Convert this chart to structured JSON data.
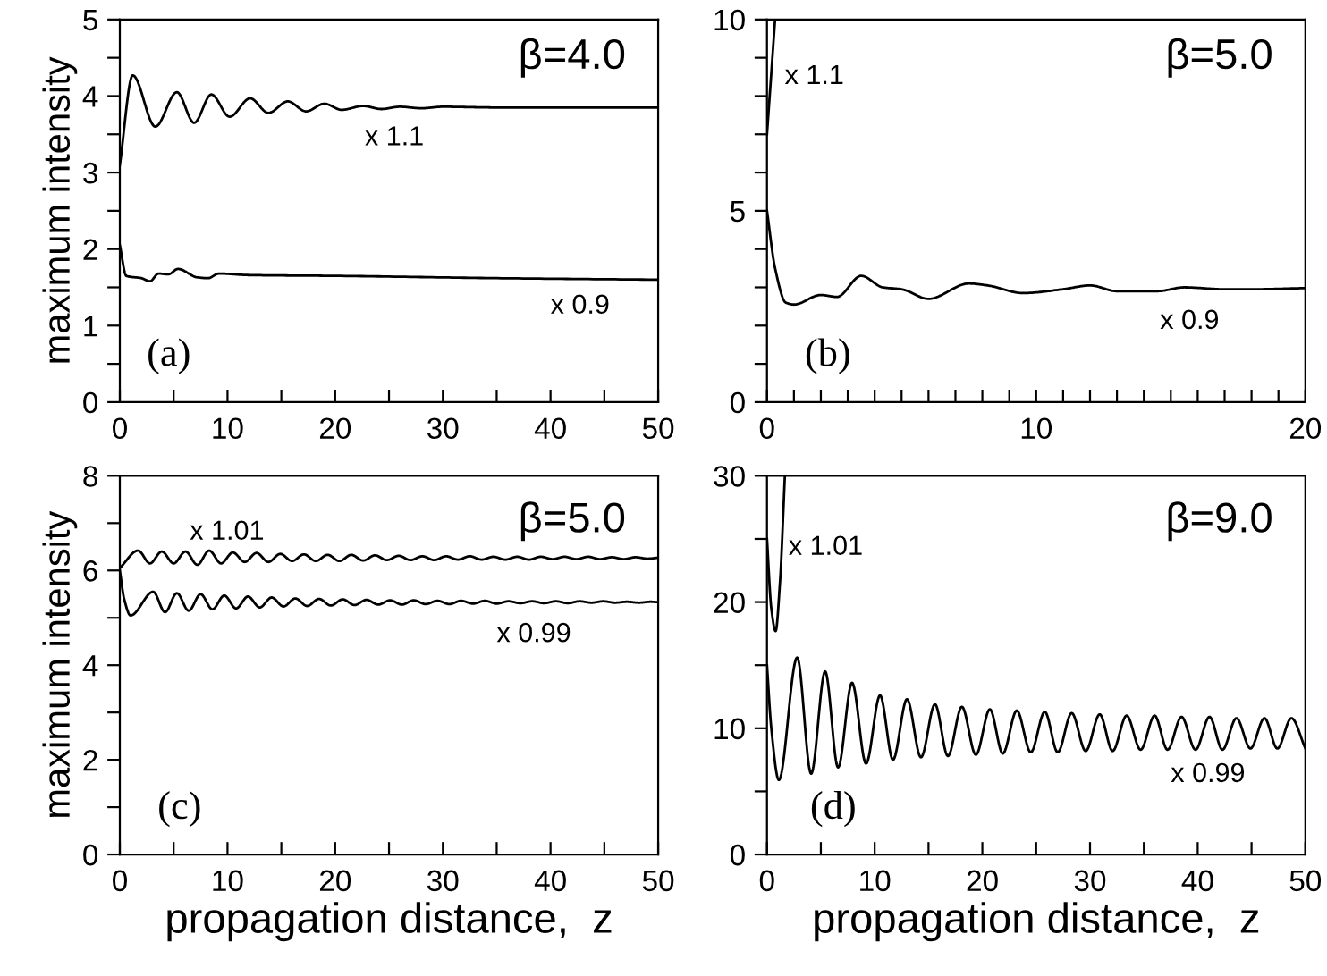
{
  "chart_data": [
    {
      "type": "line",
      "ylabel": "maximum intensity",
      "annotations": [
        "β=4.0",
        "(a)"
      ],
      "xlim": [
        0,
        50
      ],
      "ylim": [
        0,
        5
      ],
      "xticks": [
        0,
        {
          "value": 5,
          "label": null
        },
        10,
        {
          "value": 15,
          "label": null
        },
        20,
        {
          "value": 25,
          "label": null
        },
        30,
        {
          "value": 35,
          "label": null
        },
        40,
        {
          "value": 45,
          "label": null
        },
        50
      ],
      "yticks": [
        0,
        {
          "value": 0.5,
          "label": null
        },
        1,
        {
          "value": 1.5,
          "label": null
        },
        2,
        {
          "value": 2.5,
          "label": null
        },
        3,
        {
          "value": 3.5,
          "label": null
        },
        4,
        {
          "value": 4.5,
          "label": null
        },
        5
      ],
      "grid": false,
      "legend": false,
      "marker": "none",
      "line_style": "solid",
      "series": [
        {
          "name": "x 1.1",
          "color": "#000000",
          "x": [
            0,
            1.2,
            3.3,
            5.3,
            6.9,
            8.5,
            10.2,
            12.1,
            13.8,
            15.6,
            17.3,
            19,
            20.6,
            22.6,
            24.3,
            26,
            28,
            30,
            35,
            50
          ],
          "values": [
            3.1,
            4.27,
            3.6,
            4.05,
            3.65,
            4.02,
            3.73,
            3.97,
            3.78,
            3.93,
            3.8,
            3.9,
            3.82,
            3.87,
            3.83,
            3.86,
            3.84,
            3.86,
            3.85,
            3.85
          ]
        },
        {
          "name": "x 0.9",
          "color": "#000000",
          "x": [
            0,
            0.6,
            2,
            2.8,
            3.6,
            4.5,
            5.4,
            7.2,
            8.2,
            9.2,
            12,
            20,
            35,
            50
          ],
          "values": [
            2.05,
            1.65,
            1.62,
            1.58,
            1.68,
            1.67,
            1.74,
            1.63,
            1.62,
            1.68,
            1.66,
            1.65,
            1.62,
            1.6
          ]
        }
      ]
    },
    {
      "type": "line",
      "annotations": [
        "β=5.0",
        "(b)"
      ],
      "xlim": [
        0,
        20
      ],
      "ylim": [
        0,
        10
      ],
      "xticks": [
        0,
        {
          "value": 1,
          "label": null
        },
        {
          "value": 2,
          "label": null
        },
        {
          "value": 3,
          "label": null
        },
        {
          "value": 4,
          "label": null
        },
        {
          "value": 5,
          "label": null
        },
        {
          "value": 6,
          "label": null
        },
        {
          "value": 7,
          "label": null
        },
        {
          "value": 8,
          "label": null
        },
        {
          "value": 9,
          "label": null
        },
        10,
        {
          "value": 11,
          "label": null
        },
        {
          "value": 12,
          "label": null
        },
        {
          "value": 13,
          "label": null
        },
        {
          "value": 14,
          "label": null
        },
        {
          "value": 15,
          "label": null
        },
        {
          "value": 16,
          "label": null
        },
        {
          "value": 17,
          "label": null
        },
        {
          "value": 18,
          "label": null
        },
        {
          "value": 19,
          "label": null
        },
        20
      ],
      "yticks": [
        0,
        {
          "value": 1,
          "label": null
        },
        {
          "value": 2,
          "label": null
        },
        {
          "value": 3,
          "label": null
        },
        {
          "value": 4,
          "label": null
        },
        5,
        {
          "value": 6,
          "label": null
        },
        {
          "value": 7,
          "label": null
        },
        {
          "value": 8,
          "label": null
        },
        {
          "value": 9,
          "label": null
        },
        10
      ],
      "grid": false,
      "legend": false,
      "marker": "none",
      "line_style": "solid",
      "series": [
        {
          "name": "x 1.1",
          "color": "#000000",
          "x": [
            0,
            0.15,
            0.3
          ],
          "values": [
            7,
            8.5,
            10
          ]
        },
        {
          "name": "x 0.9",
          "color": "#000000",
          "x": [
            0,
            0.3,
            0.7,
            1,
            2,
            2.6,
            3.5,
            4.3,
            5,
            6,
            7.5,
            8.2,
            9.5,
            11,
            12,
            13,
            14.5,
            15.5,
            17,
            18,
            20
          ],
          "values": [
            5,
            3.5,
            2.6,
            2.55,
            2.8,
            2.75,
            3.3,
            3.0,
            2.95,
            2.7,
            3.1,
            3.05,
            2.85,
            2.95,
            3.05,
            2.9,
            2.9,
            3.0,
            2.95,
            2.95,
            2.98
          ]
        }
      ]
    },
    {
      "type": "line",
      "xlabel": "propagation distance,  z",
      "ylabel": "maximum intensity",
      "annotations": [
        "β=5.0",
        "(c)"
      ],
      "xlim": [
        0,
        50
      ],
      "ylim": [
        0,
        8
      ],
      "xticks": [
        0,
        {
          "value": 5,
          "label": null
        },
        10,
        {
          "value": 15,
          "label": null
        },
        20,
        {
          "value": 25,
          "label": null
        },
        30,
        {
          "value": 35,
          "label": null
        },
        40,
        {
          "value": 45,
          "label": null
        },
        50
      ],
      "yticks": [
        0,
        {
          "value": 1,
          "label": null
        },
        2,
        {
          "value": 3,
          "label": null
        },
        4,
        {
          "value": 5,
          "label": null
        },
        6,
        {
          "value": 7,
          "label": null
        },
        8
      ],
      "grid": false,
      "legend": false,
      "marker": "none",
      "line_style": "solid",
      "series": [
        {
          "name": "x 1.01",
          "color": "#000000",
          "x": [
            0,
            1.7,
            2.8,
            3.9,
            5.0,
            6.1,
            7.2,
            8.3,
            9.4,
            10.5,
            11.6,
            12.7,
            13.8,
            14.9,
            16,
            17.1,
            18.2,
            19.3,
            20.4,
            21.5,
            22.6,
            23.7,
            24.8,
            25.9,
            27,
            28.1,
            29.2,
            30.3,
            31.4,
            32.5,
            33.6,
            34.7,
            35.8,
            36.9,
            38,
            39.1,
            40.2,
            41.3,
            42.4,
            43.5,
            44.6,
            45.7,
            46.8,
            47.9,
            49,
            50
          ],
          "values": [
            6.05,
            6.42,
            6.15,
            6.4,
            6.15,
            6.4,
            6.12,
            6.42,
            6.15,
            6.38,
            6.18,
            6.37,
            6.18,
            6.35,
            6.2,
            6.34,
            6.2,
            6.33,
            6.2,
            6.33,
            6.21,
            6.32,
            6.22,
            6.31,
            6.22,
            6.3,
            6.22,
            6.3,
            6.23,
            6.3,
            6.23,
            6.29,
            6.23,
            6.29,
            6.23,
            6.29,
            6.24,
            6.29,
            6.24,
            6.29,
            6.24,
            6.28,
            6.24,
            6.28,
            6.25,
            6.27
          ]
        },
        {
          "name": "x 0.99",
          "color": "#000000",
          "x": [
            0,
            0.4,
            1.0,
            3.1,
            4.2,
            5.3,
            6.4,
            7.5,
            8.6,
            9.7,
            10.8,
            11.9,
            13,
            14.1,
            15.2,
            16.3,
            17.4,
            18.5,
            19.6,
            20.7,
            21.8,
            22.9,
            24,
            25.1,
            26.2,
            27.3,
            28.4,
            29.5,
            30.6,
            31.7,
            32.8,
            33.9,
            35,
            36.1,
            37.2,
            38.3,
            39.4,
            40.5,
            41.6,
            42.7,
            43.8,
            44.9,
            46,
            47.1,
            48.2,
            49.3,
            50
          ],
          "values": [
            6.0,
            5.4,
            5.05,
            5.55,
            5.12,
            5.52,
            5.15,
            5.5,
            5.18,
            5.47,
            5.2,
            5.45,
            5.22,
            5.43,
            5.24,
            5.41,
            5.25,
            5.4,
            5.26,
            5.39,
            5.27,
            5.38,
            5.28,
            5.37,
            5.28,
            5.37,
            5.29,
            5.36,
            5.29,
            5.36,
            5.3,
            5.36,
            5.3,
            5.35,
            5.31,
            5.35,
            5.31,
            5.35,
            5.31,
            5.35,
            5.32,
            5.35,
            5.32,
            5.34,
            5.32,
            5.34,
            5.33
          ]
        }
      ]
    },
    {
      "type": "line",
      "xlabel": "propagation distance,  z",
      "annotations": [
        "β=9.0",
        "(d)"
      ],
      "xlim": [
        0,
        50
      ],
      "ylim": [
        0,
        30
      ],
      "xticks": [
        0,
        {
          "value": 5,
          "label": null
        },
        10,
        {
          "value": 15,
          "label": null
        },
        20,
        {
          "value": 25,
          "label": null
        },
        30,
        {
          "value": 35,
          "label": null
        },
        40,
        {
          "value": 45,
          "label": null
        },
        50
      ],
      "yticks": [
        0,
        {
          "value": 5,
          "label": null
        },
        10,
        {
          "value": 15,
          "label": null
        },
        20,
        {
          "value": 25,
          "label": null
        },
        30
      ],
      "grid": false,
      "legend": false,
      "marker": "none",
      "line_style": "solid",
      "series": [
        {
          "name": "x 1.01",
          "color": "#000000",
          "x": [
            0,
            0.4,
            0.8,
            1.2,
            1.66
          ],
          "values": [
            25,
            19.5,
            17.7,
            21.5,
            30
          ]
        },
        {
          "name": "x 0.99",
          "color": "#000000",
          "x": [
            0,
            0.4,
            1.1,
            2.8,
            4.1,
            5.4,
            6.6,
            7.9,
            9.2,
            10.5,
            11.7,
            13.0,
            14.3,
            15.6,
            16.8,
            18.1,
            19.4,
            20.7,
            21.9,
            23.2,
            24.5,
            25.8,
            27.0,
            28.3,
            29.6,
            30.9,
            32.1,
            33.4,
            34.7,
            36.0,
            37.2,
            38.5,
            39.8,
            41.1,
            42.3,
            43.6,
            44.9,
            46.2,
            47.4,
            48.7,
            50
          ],
          "values": [
            15,
            10,
            5.9,
            15.6,
            6.4,
            14.5,
            6.9,
            13.6,
            7.2,
            12.6,
            7.5,
            12.3,
            7.7,
            11.9,
            7.8,
            11.7,
            7.9,
            11.5,
            8.0,
            11.4,
            8.1,
            11.3,
            8.1,
            11.2,
            8.2,
            11.1,
            8.2,
            11.0,
            8.3,
            11.0,
            8.3,
            10.9,
            8.3,
            10.9,
            8.3,
            10.8,
            8.4,
            10.8,
            8.4,
            10.8,
            8.4
          ]
        }
      ]
    }
  ]
}
